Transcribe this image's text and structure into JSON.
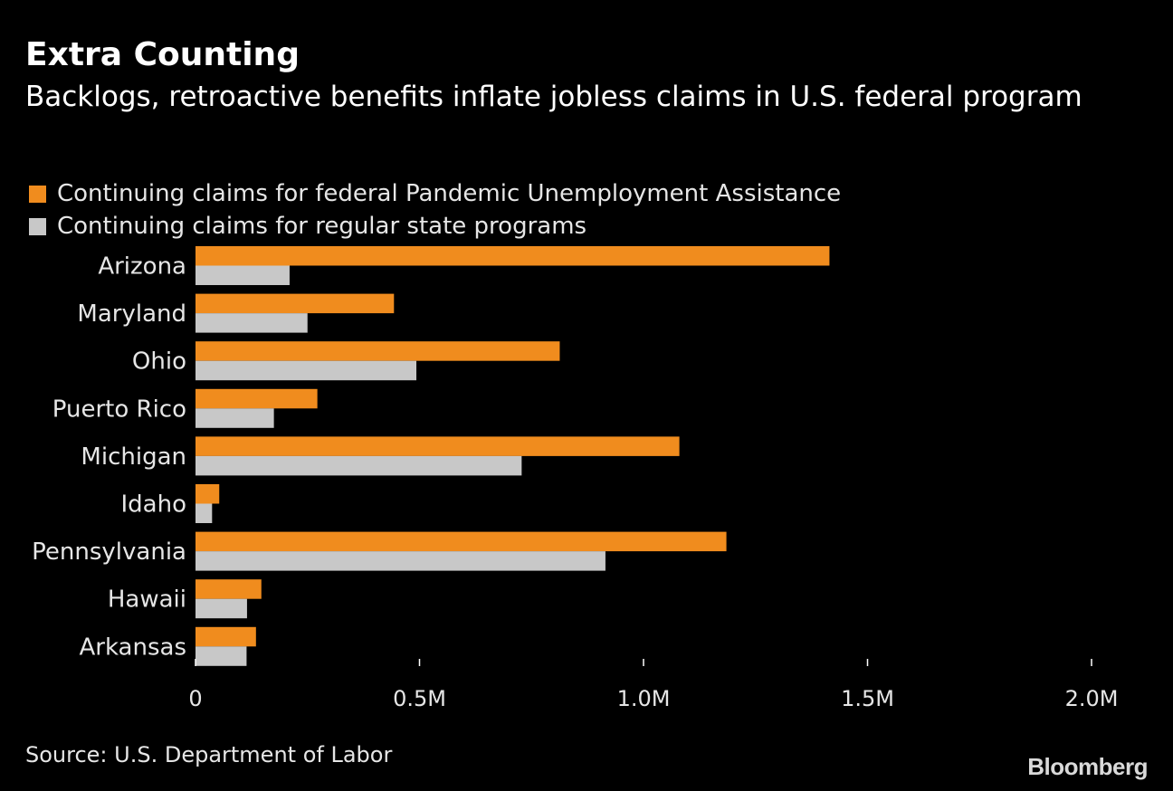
{
  "title": "Extra Counting",
  "subtitle": "Backlogs, retroactive benefits inflate jobless claims in U.S. federal program",
  "source": "Source: U.S. Department of Labor",
  "brand": "Bloomberg",
  "colors": {
    "pua": "#f08c1e",
    "state": "#c8c8c8",
    "background": "#000000"
  },
  "chart_data": {
    "type": "bar",
    "orientation": "horizontal",
    "categories": [
      "Arizona",
      "Maryland",
      "Ohio",
      "Puerto Rico",
      "Michigan",
      "Idaho",
      "Pennsylvania",
      "Hawaii",
      "Arkansas"
    ],
    "series": [
      {
        "name": "Continuing claims for federal Pandemic Unemployment Assistance",
        "values": [
          1415000,
          443000,
          813000,
          272000,
          1080000,
          53000,
          1185000,
          147000,
          135000
        ]
      },
      {
        "name": "Continuing claims for regular state programs",
        "values": [
          210000,
          250000,
          493000,
          175000,
          728000,
          37000,
          915000,
          115000,
          114000
        ]
      }
    ],
    "xlim": [
      0,
      2000000
    ],
    "xticks": [
      0,
      500000,
      1000000,
      1500000,
      2000000
    ],
    "xtick_labels": [
      "0",
      "0.5M",
      "1.0M",
      "1.5M",
      "2.0M"
    ],
    "grid": false,
    "legend_position": "top-left"
  }
}
